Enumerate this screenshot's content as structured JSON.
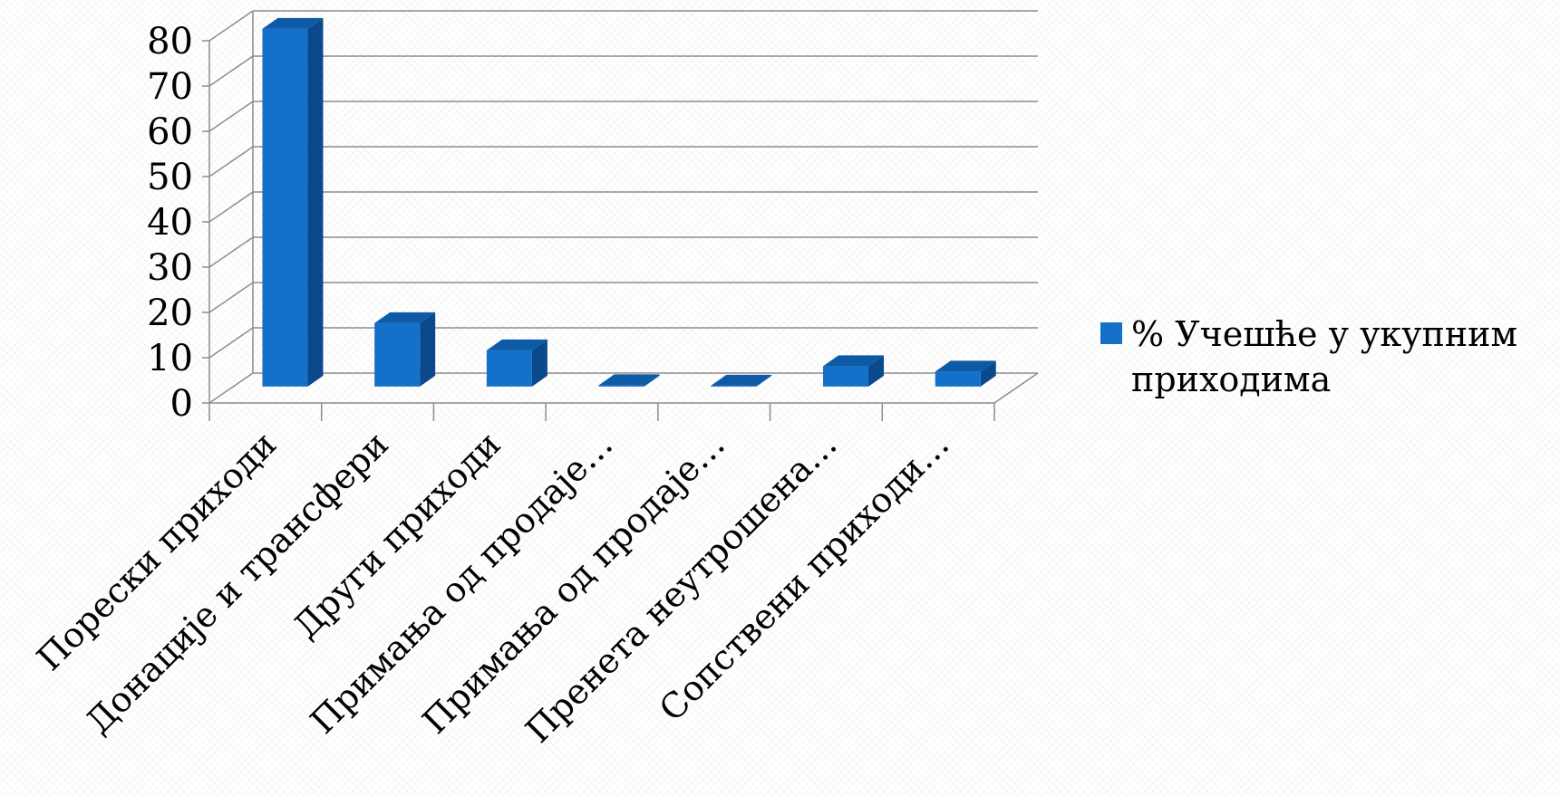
{
  "chart_data": {
    "type": "bar",
    "categories": [
      "Порески приходи",
      "Донације и трансфери",
      "Други приходи",
      "Примања од продаје…",
      "Примања од продаје…",
      "Пренета неутрошена…",
      "Сопствени приходи…"
    ],
    "series": [
      {
        "name": "% Учешће у укупним приходима",
        "values": [
          79,
          14,
          8,
          0.3,
          0.2,
          4.5,
          3.3
        ]
      }
    ],
    "ylim": [
      0,
      80
    ],
    "yticks": [
      0,
      10,
      20,
      30,
      40,
      50,
      60,
      70,
      80
    ],
    "grid": true,
    "legend_position": "right",
    "three_d": true
  },
  "colors": {
    "bar_front": "#1470c9",
    "bar_top": "#0d5aa6",
    "bar_side": "#0a4a8c",
    "grid": "#8c8c8c",
    "axis": "#8c8c8c"
  }
}
